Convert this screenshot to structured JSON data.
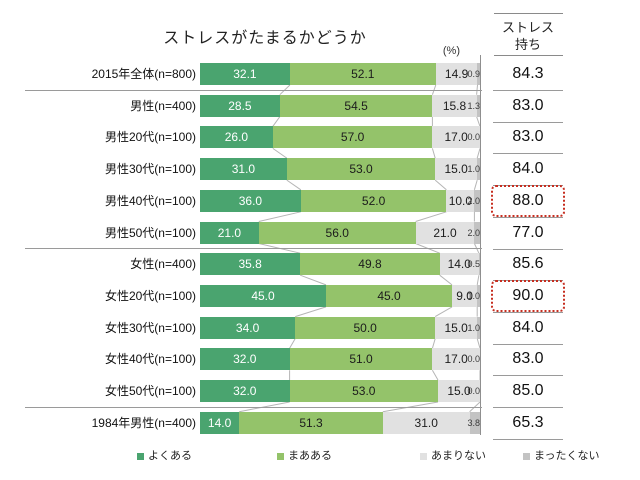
{
  "title": "ストレスがたまるかどうか",
  "percent_label": "(%)",
  "right_header": {
    "line1": "ストレス",
    "line2": "持ち"
  },
  "legend": [
    {
      "label": "よくある",
      "color": "#4aa46f"
    },
    {
      "label": "まあある",
      "color": "#94c36a"
    },
    {
      "label": "あまりない",
      "color": "#e1e1e1"
    },
    {
      "label": "まったくない",
      "color": "#c3c3c3"
    }
  ],
  "colors": {
    "seg1": "#4aa46f",
    "seg2": "#94c36a",
    "seg3": "#e1e1e1",
    "seg4": "#c3c3c3",
    "separator": "#9a9a9a",
    "connector": "#b5b5b5",
    "highlight_border": "#c62d1f"
  },
  "chart_data": {
    "type": "bar",
    "orientation": "horizontal-stacked",
    "title": "ストレスがたまるかどうか",
    "unit_label": "(%)",
    "xlim": [
      0,
      100
    ],
    "series_names": [
      "よくある",
      "まあある",
      "あまりない",
      "まったくない"
    ],
    "stress_column_header": "ストレス持ち",
    "rows": [
      {
        "label": "2015年全体(n=800)",
        "values": [
          32.1,
          52.1,
          14.9,
          0.9
        ],
        "stress": "84.3",
        "highlight": false
      },
      {
        "label": "男性(n=400)",
        "values": [
          28.5,
          54.5,
          15.8,
          1.3
        ],
        "stress": "83.0",
        "highlight": false
      },
      {
        "label": "男性20代(n=100)",
        "values": [
          26.0,
          57.0,
          17.0,
          0.0
        ],
        "stress": "83.0",
        "highlight": false
      },
      {
        "label": "男性30代(n=100)",
        "values": [
          31.0,
          53.0,
          15.0,
          1.0
        ],
        "stress": "84.0",
        "highlight": false
      },
      {
        "label": "男性40代(n=100)",
        "values": [
          36.0,
          52.0,
          10.0,
          2.0
        ],
        "stress": "88.0",
        "highlight": true
      },
      {
        "label": "男性50代(n=100)",
        "values": [
          21.0,
          56.0,
          21.0,
          2.0
        ],
        "stress": "77.0",
        "highlight": false
      },
      {
        "label": "女性(n=400)",
        "values": [
          35.8,
          49.8,
          14.0,
          0.5
        ],
        "stress": "85.6",
        "highlight": false
      },
      {
        "label": "女性20代(n=100)",
        "values": [
          45.0,
          45.0,
          9.0,
          1.0
        ],
        "stress": "90.0",
        "highlight": true
      },
      {
        "label": "女性30代(n=100)",
        "values": [
          34.0,
          50.0,
          15.0,
          1.0
        ],
        "stress": "84.0",
        "highlight": false
      },
      {
        "label": "女性40代(n=100)",
        "values": [
          32.0,
          51.0,
          17.0,
          0.0
        ],
        "stress": "83.0",
        "highlight": false
      },
      {
        "label": "女性50代(n=100)",
        "values": [
          32.0,
          53.0,
          15.0,
          0.0
        ],
        "stress": "85.0",
        "highlight": false
      },
      {
        "label": "1984年男性(n=400)",
        "values": [
          14.0,
          51.3,
          31.0,
          3.8
        ],
        "stress": "65.3",
        "highlight": false
      }
    ],
    "group_separators_after": [
      0,
      5,
      10
    ]
  }
}
